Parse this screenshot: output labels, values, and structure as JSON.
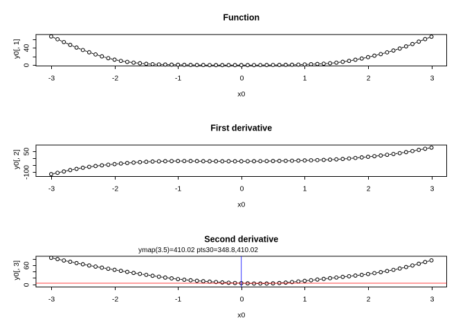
{
  "colors": {
    "foreground": "#000000",
    "background": "#ffffff"
  },
  "chart_data": [
    {
      "type": "line",
      "title": "Function",
      "xlabel": "x0",
      "ylabel": "y0[, 1]",
      "x_range": [
        -3,
        3
      ],
      "marker_step": 0.1,
      "x_ticks": [
        -3,
        -2,
        -1,
        0,
        1,
        2,
        3
      ],
      "x_tick_labels": [
        "-3",
        "-2",
        "-1",
        "0",
        "1",
        "2",
        "3"
      ],
      "y_ticks": [
        0,
        20,
        40,
        60
      ],
      "y_tick_labels": [
        "0",
        "",
        "40",
        ""
      ],
      "anchors_x": [
        -3,
        -2.5,
        -2,
        -1.5,
        -1,
        -0.5,
        0,
        0.5,
        1,
        1.5,
        2,
        2.5,
        3
      ],
      "anchors_y": [
        66.5,
        35.0,
        12.6,
        3.0,
        0.8,
        0.05,
        0.0,
        0.3,
        1.5,
        5.7,
        18.4,
        38.5,
        65.9
      ]
    },
    {
      "type": "line",
      "title": "First derivative",
      "xlabel": "x0",
      "ylabel": "y0[, 2]",
      "x_range": [
        -3,
        3
      ],
      "marker_step": 0.1,
      "x_ticks": [
        -3,
        -2,
        -1,
        0,
        1,
        2,
        3
      ],
      "x_tick_labels": [
        "-3",
        "-2",
        "-1",
        "0",
        "1",
        "2",
        "3"
      ],
      "y_ticks": [
        -100,
        -50,
        0,
        50
      ],
      "y_tick_labels": [
        "-100",
        "",
        "",
        "50"
      ],
      "anchors_x": [
        -3,
        -2.5,
        -2,
        -1.5,
        -1,
        -0.5,
        0,
        0.5,
        1,
        1.5,
        2,
        2.5,
        3
      ],
      "anchors_y": [
        -114,
        -68,
        -41.5,
        -25,
        -19,
        -21,
        -21,
        -19,
        -15,
        -7,
        11.5,
        38,
        78
      ]
    },
    {
      "type": "line",
      "title": "Second derivative",
      "xlabel": "x0",
      "ylabel": "y0[, 3]",
      "x_range": [
        -3,
        3
      ],
      "marker_step": 0.1,
      "x_ticks": [
        -3,
        -2,
        -1,
        0,
        1,
        2,
        3
      ],
      "x_tick_labels": [
        "-3",
        "-2",
        "-1",
        "0",
        "1",
        "2",
        "3"
      ],
      "y_ticks": [
        0,
        20,
        40,
        60,
        80
      ],
      "y_tick_labels": [
        "0",
        "",
        "",
        "60",
        ""
      ],
      "anchors_x": [
        -3,
        -2.5,
        -2,
        -1.5,
        -1,
        -0.5,
        0,
        0.5,
        1,
        1.5,
        2,
        2.5,
        3
      ],
      "anchors_y": [
        84,
        63.5,
        46,
        30,
        16.5,
        8.5,
        3.5,
        3.0,
        11,
        21.5,
        32.5,
        50,
        76
      ]
    }
  ]
}
